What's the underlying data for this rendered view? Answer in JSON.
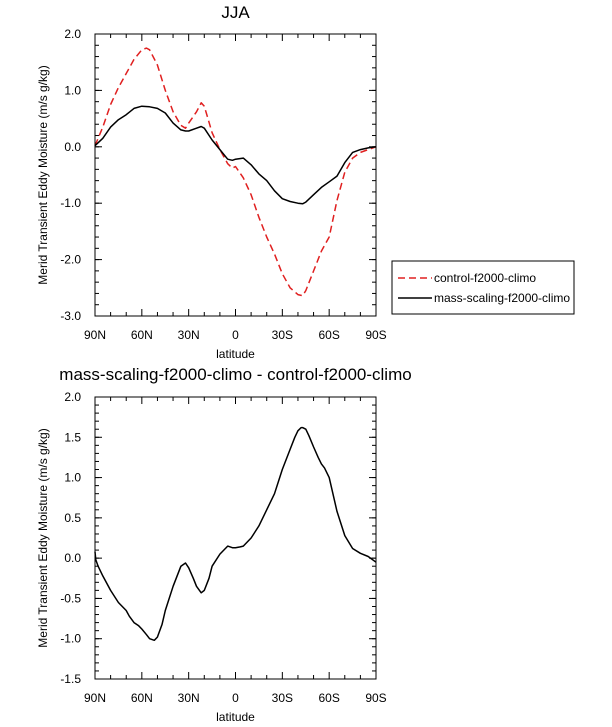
{
  "chart_data": [
    {
      "type": "line",
      "title": "JJA",
      "xlabel": "latitude",
      "ylabel": "Merid Transient Eddy Moisture (m/s g/kg)",
      "xlim": [
        90,
        -90
      ],
      "ylim": [
        -3.0,
        2.0
      ],
      "x_ticks": [
        90,
        60,
        30,
        0,
        -30,
        -60,
        -90
      ],
      "x_tick_labels": [
        "90N",
        "60N",
        "30N",
        "0",
        "30S",
        "60S",
        "90S"
      ],
      "y_ticks": [
        2.0,
        1.0,
        0.0,
        -1.0,
        -2.0,
        -3.0
      ],
      "y_tick_labels": [
        "2.0",
        "1.0",
        "0.0",
        "-1.0",
        "-2.0",
        "-3.0"
      ],
      "grid": false,
      "legend_position": "right-bottom",
      "series": [
        {
          "name": "control-f2000-climo",
          "color": "#e02020",
          "dash": "dashed",
          "x": [
            90,
            85,
            80,
            75,
            70,
            65,
            60,
            57,
            55,
            50,
            45,
            40,
            35,
            32,
            30,
            25,
            22,
            20,
            15,
            10,
            5,
            2,
            0,
            -5,
            -10,
            -15,
            -20,
            -25,
            -30,
            -35,
            -40,
            -43,
            -45,
            -50,
            -55,
            -60,
            -65,
            -70,
            -75,
            -80,
            -85,
            -90
          ],
          "y": [
            0.02,
            0.35,
            0.75,
            1.05,
            1.3,
            1.55,
            1.72,
            1.75,
            1.72,
            1.45,
            1.0,
            0.62,
            0.38,
            0.33,
            0.42,
            0.62,
            0.78,
            0.72,
            0.25,
            -0.05,
            -0.3,
            -0.38,
            -0.35,
            -0.55,
            -0.85,
            -1.25,
            -1.6,
            -1.9,
            -2.25,
            -2.5,
            -2.62,
            -2.64,
            -2.55,
            -2.2,
            -1.85,
            -1.6,
            -0.95,
            -0.45,
            -0.2,
            -0.1,
            -0.05,
            0.0
          ]
        },
        {
          "name": "mass-scaling-f2000-climo",
          "color": "#000000",
          "dash": "solid",
          "x": [
            90,
            85,
            80,
            75,
            70,
            65,
            60,
            55,
            50,
            45,
            40,
            35,
            32,
            30,
            25,
            22,
            20,
            15,
            10,
            5,
            2,
            0,
            -5,
            -10,
            -15,
            -20,
            -25,
            -30,
            -35,
            -40,
            -43,
            -45,
            -50,
            -55,
            -60,
            -65,
            -70,
            -75,
            -80,
            -85,
            -90
          ],
          "y": [
            0.02,
            0.15,
            0.35,
            0.48,
            0.57,
            0.68,
            0.72,
            0.71,
            0.68,
            0.6,
            0.42,
            0.3,
            0.28,
            0.28,
            0.33,
            0.36,
            0.33,
            0.12,
            -0.05,
            -0.22,
            -0.24,
            -0.22,
            -0.2,
            -0.32,
            -0.48,
            -0.6,
            -0.78,
            -0.92,
            -0.97,
            -1.0,
            -1.01,
            -0.98,
            -0.85,
            -0.72,
            -0.62,
            -0.52,
            -0.28,
            -0.1,
            -0.05,
            -0.02,
            0.0
          ]
        }
      ]
    },
    {
      "type": "line",
      "title": "mass-scaling-f2000-climo - control-f2000-climo",
      "xlabel": "latitude",
      "ylabel": "Merid Transient Eddy Moisture (m/s g/kg)",
      "xlim": [
        90,
        -90
      ],
      "ylim": [
        -1.5,
        2.0
      ],
      "x_ticks": [
        90,
        60,
        30,
        0,
        -30,
        -60,
        -90
      ],
      "x_tick_labels": [
        "90N",
        "60N",
        "30N",
        "0",
        "30S",
        "60S",
        "90S"
      ],
      "y_ticks": [
        2.0,
        1.5,
        1.0,
        0.5,
        0.0,
        -0.5,
        -1.0,
        -1.5
      ],
      "y_tick_labels": [
        "2.0",
        "1.5",
        "1.0",
        "0.5",
        "0.0",
        "-0.5",
        "-1.0",
        "-1.5"
      ],
      "grid": false,
      "series": [
        {
          "color": "#000000",
          "dash": "solid",
          "x": [
            90,
            89.5,
            88,
            85,
            80,
            75,
            70,
            68,
            65,
            62,
            60,
            57,
            55,
            52,
            50,
            47,
            45,
            40,
            35,
            32,
            30,
            27,
            25,
            22,
            20,
            17,
            15,
            10,
            5,
            2,
            0,
            -3,
            -5,
            -10,
            -15,
            -20,
            -25,
            -30,
            -35,
            -38,
            -40,
            -42,
            -43,
            -45,
            -47,
            -50,
            -53,
            -55,
            -57,
            -60,
            -65,
            -70,
            -75,
            -80,
            -85,
            -90
          ],
          "y": [
            0.08,
            -0.02,
            -0.1,
            -0.22,
            -0.4,
            -0.55,
            -0.65,
            -0.72,
            -0.8,
            -0.84,
            -0.88,
            -0.95,
            -1.0,
            -1.02,
            -0.98,
            -0.82,
            -0.65,
            -0.35,
            -0.1,
            -0.06,
            -0.12,
            -0.25,
            -0.35,
            -0.43,
            -0.4,
            -0.25,
            -0.1,
            0.05,
            0.15,
            0.13,
            0.13,
            0.14,
            0.15,
            0.25,
            0.4,
            0.6,
            0.8,
            1.1,
            1.35,
            1.5,
            1.58,
            1.62,
            1.62,
            1.6,
            1.52,
            1.38,
            1.25,
            1.17,
            1.12,
            1.0,
            0.58,
            0.28,
            0.12,
            0.06,
            0.02,
            -0.05
          ]
        }
      ]
    }
  ]
}
